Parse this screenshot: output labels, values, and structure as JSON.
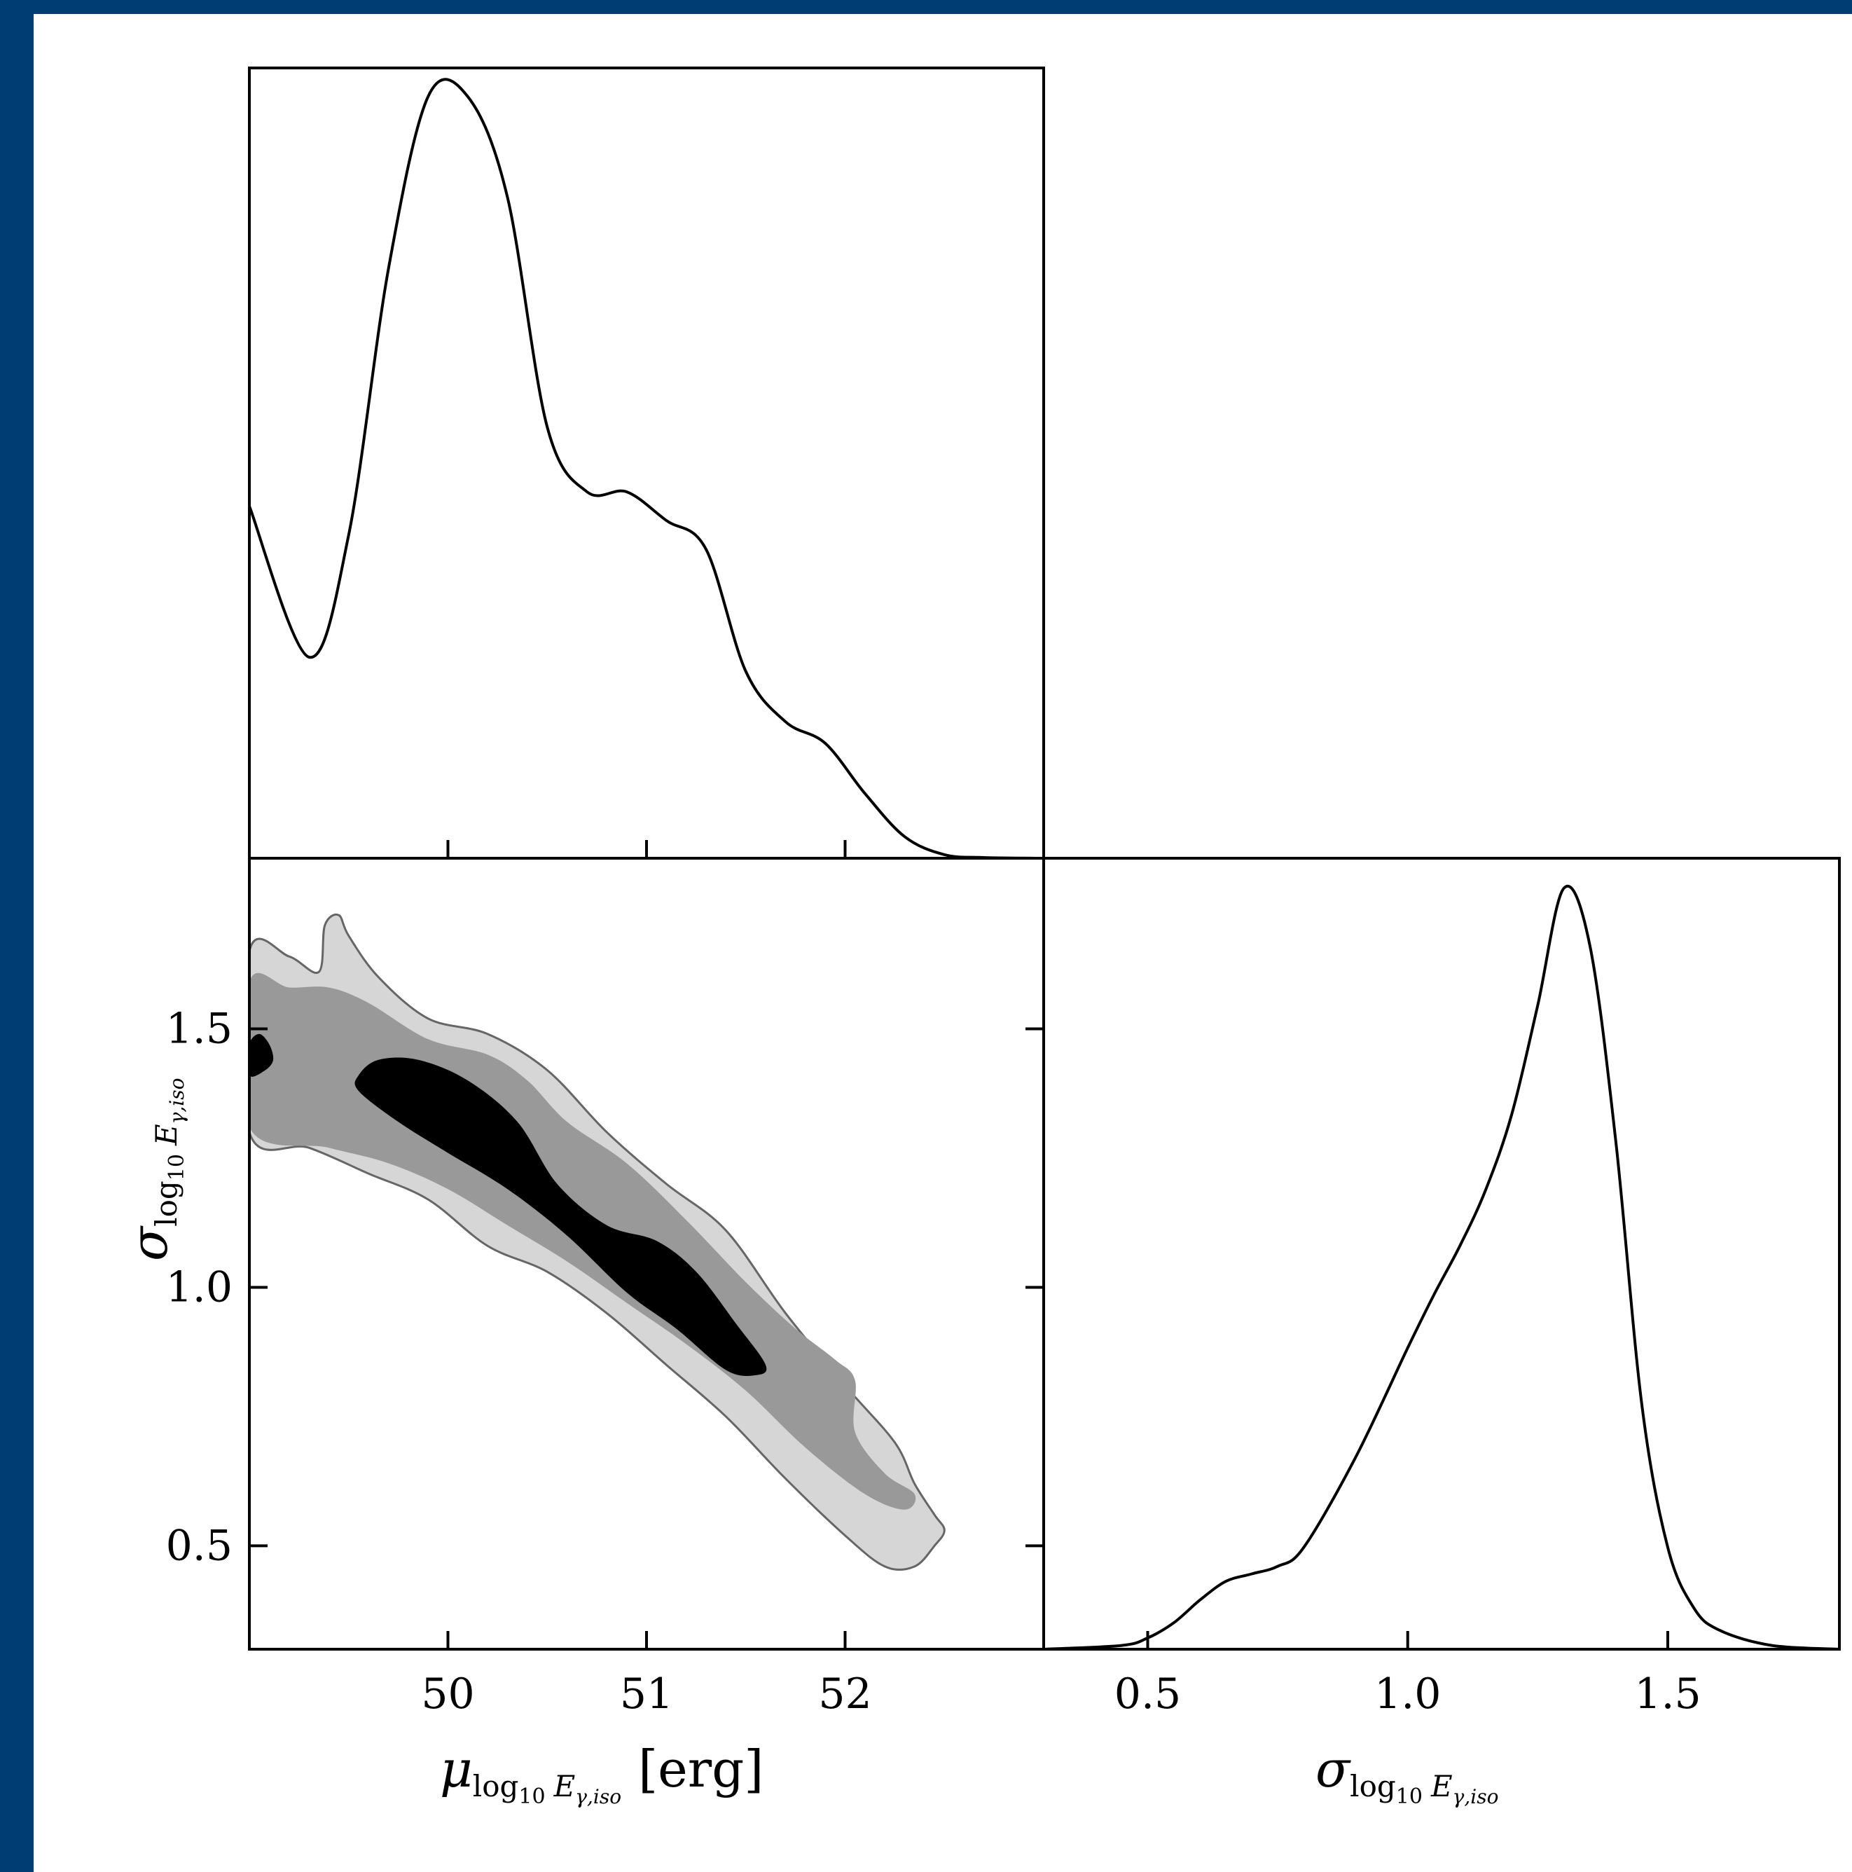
{
  "colors": {
    "frame": "#003d73",
    "line": "#000000",
    "contour_inner": "#000000",
    "contour_mid": "#999999",
    "contour_outer": "#d6d6d6",
    "contour_edge": "#666666"
  },
  "chart_data": [
    {
      "type": "line",
      "panel": "marginal-mu",
      "x": [
        49.0,
        49.3,
        49.5,
        49.7,
        49.9,
        50.1,
        50.3,
        50.5,
        50.7,
        50.9,
        51.1,
        51.3,
        51.5,
        51.7,
        51.9,
        52.1,
        52.3,
        52.5,
        52.7,
        53.0
      ],
      "y": [
        0.49,
        0.28,
        0.45,
        0.82,
        1.06,
        1.06,
        0.92,
        0.6,
        0.51,
        0.51,
        0.47,
        0.43,
        0.26,
        0.19,
        0.16,
        0.09,
        0.03,
        0.005,
        0.001,
        0.0
      ],
      "xlim": [
        49.0,
        53.0
      ],
      "ylim": [
        0,
        1.1
      ]
    },
    {
      "type": "contour",
      "panel": "joint-mu-sigma",
      "levels": [
        "outer",
        "mid",
        "inner"
      ],
      "xlabel": "μ log10 Eγ,iso [erg]",
      "ylabel": "σ log10 Eγ,iso",
      "xlim": [
        49.0,
        53.0
      ],
      "ylim": [
        0.3,
        1.83
      ],
      "xticks": [
        "50",
        "51",
        "52"
      ],
      "yticks": [
        "0.5",
        "1.0",
        "1.5"
      ],
      "regions": {
        "outer": [
          [
            49.0,
            1.65
          ],
          [
            49.2,
            1.64
          ],
          [
            49.35,
            1.61
          ],
          [
            49.38,
            1.7
          ],
          [
            49.45,
            1.72
          ],
          [
            49.5,
            1.68
          ],
          [
            49.65,
            1.6
          ],
          [
            49.9,
            1.52
          ],
          [
            50.2,
            1.49
          ],
          [
            50.5,
            1.42
          ],
          [
            50.8,
            1.3
          ],
          [
            51.1,
            1.2
          ],
          [
            51.4,
            1.11
          ],
          [
            51.7,
            0.95
          ],
          [
            52.0,
            0.81
          ],
          [
            52.25,
            0.7
          ],
          [
            52.35,
            0.62
          ],
          [
            52.45,
            0.56
          ],
          [
            52.5,
            0.53
          ],
          [
            52.45,
            0.5
          ],
          [
            52.35,
            0.46
          ],
          [
            52.2,
            0.46
          ],
          [
            52.0,
            0.52
          ],
          [
            51.7,
            0.63
          ],
          [
            51.4,
            0.75
          ],
          [
            51.1,
            0.85
          ],
          [
            50.8,
            0.95
          ],
          [
            50.5,
            1.03
          ],
          [
            50.2,
            1.08
          ],
          [
            49.9,
            1.17
          ],
          [
            49.6,
            1.22
          ],
          [
            49.3,
            1.27
          ],
          [
            49.0,
            1.3
          ]
        ],
        "mid": [
          [
            49.0,
            1.59
          ],
          [
            49.2,
            1.58
          ],
          [
            49.4,
            1.58
          ],
          [
            49.6,
            1.55
          ],
          [
            49.9,
            1.48
          ],
          [
            50.2,
            1.45
          ],
          [
            50.4,
            1.4
          ],
          [
            50.6,
            1.32
          ],
          [
            50.9,
            1.24
          ],
          [
            51.2,
            1.13
          ],
          [
            51.5,
            1.01
          ],
          [
            51.75,
            0.92
          ],
          [
            51.95,
            0.86
          ],
          [
            52.05,
            0.82
          ],
          [
            52.05,
            0.72
          ],
          [
            52.2,
            0.64
          ],
          [
            52.35,
            0.6
          ],
          [
            52.3,
            0.57
          ],
          [
            52.1,
            0.6
          ],
          [
            51.8,
            0.69
          ],
          [
            51.5,
            0.8
          ],
          [
            51.2,
            0.89
          ],
          [
            50.9,
            0.97
          ],
          [
            50.6,
            1.05
          ],
          [
            50.3,
            1.12
          ],
          [
            50.0,
            1.19
          ],
          [
            49.7,
            1.24
          ],
          [
            49.4,
            1.27
          ],
          [
            49.0,
            1.31
          ]
        ],
        "inner": [
          [
            49.55,
            1.41
          ],
          [
            49.65,
            1.44
          ],
          [
            49.85,
            1.44
          ],
          [
            50.1,
            1.4
          ],
          [
            50.35,
            1.32
          ],
          [
            50.55,
            1.2
          ],
          [
            50.8,
            1.12
          ],
          [
            51.05,
            1.09
          ],
          [
            51.25,
            1.03
          ],
          [
            51.45,
            0.93
          ],
          [
            51.6,
            0.85
          ],
          [
            51.55,
            0.83
          ],
          [
            51.4,
            0.84
          ],
          [
            51.15,
            0.92
          ],
          [
            50.9,
            0.99
          ],
          [
            50.6,
            1.1
          ],
          [
            50.3,
            1.19
          ],
          [
            50.0,
            1.26
          ],
          [
            49.75,
            1.32
          ],
          [
            49.55,
            1.38
          ]
        ],
        "inner_left": [
          [
            49.0,
            1.47
          ],
          [
            49.05,
            1.49
          ],
          [
            49.1,
            1.47
          ],
          [
            49.12,
            1.44
          ],
          [
            49.08,
            1.42
          ],
          [
            49.0,
            1.41
          ]
        ]
      }
    },
    {
      "type": "line",
      "panel": "marginal-sigma",
      "x": [
        0.3,
        0.45,
        0.5,
        0.55,
        0.6,
        0.65,
        0.7,
        0.75,
        0.8,
        0.9,
        1.0,
        1.05,
        1.1,
        1.15,
        1.2,
        1.25,
        1.3,
        1.35,
        1.4,
        1.45,
        1.5,
        1.55,
        1.6,
        1.7,
        1.83
      ],
      "y": [
        0.0,
        0.01,
        0.03,
        0.07,
        0.13,
        0.18,
        0.2,
        0.22,
        0.27,
        0.51,
        0.8,
        0.94,
        1.07,
        1.22,
        1.42,
        1.71,
        2.02,
        1.87,
        1.35,
        0.65,
        0.27,
        0.11,
        0.05,
        0.01,
        0.0
      ],
      "xlabel": "σ log10 Eγ,iso",
      "xlim": [
        0.3,
        1.83
      ],
      "ylim": [
        0,
        2.1
      ],
      "xticks": [
        "0.5",
        "1.0",
        "1.5"
      ]
    }
  ],
  "axis_text": {
    "mu_symbol": "μ",
    "sigma_symbol": "σ",
    "log_sub": "log",
    "ten_sub": "10",
    "E": "E",
    "gamma_iso": "γ,iso",
    "erg_unit": "[erg]"
  }
}
